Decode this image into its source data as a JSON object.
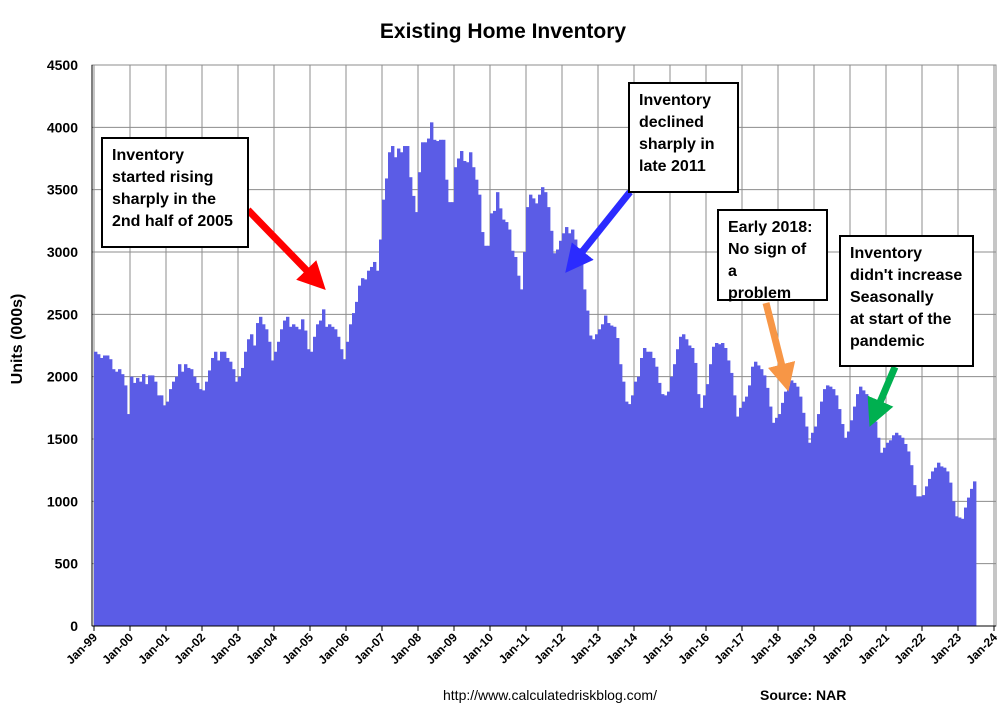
{
  "chart_data": {
    "type": "bar",
    "title": "Existing Home Inventory",
    "xlabel": "",
    "ylabel": "Units (000s)",
    "ylim": [
      0,
      4500
    ],
    "yticks": [
      0,
      500,
      1000,
      1500,
      2000,
      2500,
      3000,
      3500,
      4000,
      4500
    ],
    "xticks": [
      "Jan-99",
      "Jan-00",
      "Jan-01",
      "Jan-02",
      "Jan-03",
      "Jan-04",
      "Jan-05",
      "Jan-06",
      "Jan-07",
      "Jan-08",
      "Jan-09",
      "Jan-10",
      "Jan-11",
      "Jan-12",
      "Jan-13",
      "Jan-14",
      "Jan-15",
      "Jan-16",
      "Jan-17",
      "Jan-18",
      "Jan-19",
      "Jan-20",
      "Jan-21",
      "Jan-22",
      "Jan-23",
      "Jan-24"
    ],
    "grid": true,
    "bar_color": "#5b5ce6",
    "first_period": "Jan-99",
    "frequency": "monthly",
    "values": [
      2200,
      2180,
      2150,
      2170,
      2170,
      2140,
      2060,
      2040,
      2060,
      2020,
      1930,
      1700,
      2000,
      1950,
      1990,
      1960,
      2020,
      1940,
      2010,
      2010,
      1960,
      1850,
      1850,
      1770,
      1800,
      1900,
      1960,
      2000,
      2100,
      2040,
      2100,
      2070,
      2060,
      2000,
      1950,
      1900,
      1890,
      1960,
      2050,
      2150,
      2200,
      2130,
      2200,
      2200,
      2150,
      2120,
      2060,
      1960,
      2000,
      2070,
      2200,
      2300,
      2340,
      2250,
      2430,
      2480,
      2420,
      2380,
      2280,
      2130,
      2200,
      2280,
      2380,
      2450,
      2480,
      2400,
      2420,
      2400,
      2380,
      2460,
      2370,
      2220,
      2200,
      2320,
      2420,
      2450,
      2540,
      2400,
      2420,
      2400,
      2380,
      2320,
      2220,
      2140,
      2280,
      2420,
      2510,
      2600,
      2730,
      2790,
      2780,
      2850,
      2880,
      2920,
      2850,
      3100,
      3420,
      3590,
      3800,
      3850,
      3760,
      3830,
      3800,
      3850,
      3850,
      3600,
      3450,
      3320,
      3640,
      3880,
      3880,
      3910,
      4040,
      3900,
      3890,
      3900,
      3900,
      3580,
      3400,
      3400,
      3680,
      3750,
      3810,
      3730,
      3720,
      3800,
      3680,
      3580,
      3460,
      3160,
      3050,
      3050,
      3310,
      3330,
      3480,
      3350,
      3260,
      3240,
      3180,
      3010,
      2960,
      2810,
      2700,
      3000,
      3360,
      3460,
      3430,
      3390,
      3460,
      3520,
      3480,
      3360,
      3170,
      2990,
      3020,
      3090,
      3150,
      3200,
      3150,
      3180,
      3100,
      3030,
      2920,
      2700,
      2530,
      2330,
      2300,
      2340,
      2380,
      2420,
      2490,
      2430,
      2410,
      2400,
      2310,
      2100,
      1960,
      1800,
      1780,
      1850,
      1960,
      2000,
      2150,
      2230,
      2200,
      2200,
      2150,
      2080,
      1950,
      1860,
      1850,
      1880,
      2000,
      2100,
      2220,
      2320,
      2340,
      2300,
      2250,
      2230,
      2110,
      1860,
      1750,
      1850,
      1940,
      2100,
      2240,
      2270,
      2260,
      2270,
      2230,
      2130,
      2030,
      1850,
      1680,
      1750,
      1800,
      1840,
      1930,
      2080,
      2120,
      2090,
      2060,
      2010,
      1910,
      1760,
      1630,
      1670,
      1700,
      1790,
      1880,
      1930,
      1970,
      1950,
      1920,
      1840,
      1710,
      1600,
      1470,
      1550,
      1600,
      1700,
      1800,
      1900,
      1930,
      1920,
      1900,
      1850,
      1740,
      1620,
      1510,
      1560,
      1650,
      1760,
      1860,
      1920,
      1890,
      1860,
      1830,
      1770,
      1640,
      1510,
      1390,
      1430,
      1470,
      1490,
      1530,
      1550,
      1530,
      1510,
      1460,
      1400,
      1290,
      1130,
      1040,
      1040,
      1050,
      1120,
      1180,
      1240,
      1270,
      1310,
      1280,
      1270,
      1240,
      1150,
      1000,
      880,
      870,
      860,
      950,
      1030,
      1100,
      1160
    ],
    "annotations": [
      {
        "id": "ann1",
        "text": "Inventory\nstarted rising\nsharply in the\n2nd half of 2005",
        "color": "#ff0000"
      },
      {
        "id": "ann2",
        "text": "Inventory\ndeclined\nsharply in\nlate 2011",
        "color": "#2b2bff"
      },
      {
        "id": "ann3",
        "text": "Early 2018:\nNo sign of a\nproblem",
        "color": "#f79646"
      },
      {
        "id": "ann4",
        "text": "Inventory\ndidn't increase\nSeasonally\nat start of the\npandemic",
        "color": "#00b050"
      }
    ]
  },
  "footer": {
    "url": "http://www.calculatedriskblog.com/",
    "source": "Source: NAR"
  }
}
